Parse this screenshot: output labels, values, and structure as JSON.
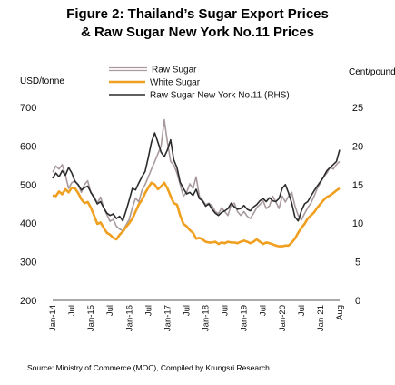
{
  "title": {
    "line1": "Figure 2: Thailand’s Sugar Export Prices",
    "line2": "& Raw Sugar New York No.11 Prices"
  },
  "source": "Source: Ministry of Commerce (MOC), Compiled by Krungsri Research",
  "chart_data": {
    "type": "line",
    "title": "Figure 2: Thailand’s Sugar Export Prices & Raw Sugar New York No.11 Prices",
    "ylabel_left": "USD/tonne",
    "ylabel_right": "Cent/pound",
    "ylim_left": [
      200,
      700
    ],
    "ylim_right": [
      0,
      25
    ],
    "yticks_left": [
      "700",
      "600",
      "500",
      "400",
      "300",
      "200"
    ],
    "yticks_right": [
      "25",
      "20",
      "15",
      "10",
      "5",
      "0"
    ],
    "x_tick_labels": [
      "Jan-14",
      "Jul",
      "Jan-15",
      "Jul",
      "Jan-16",
      "Jul",
      "Jan-17",
      "Jul",
      "Jan-18",
      "Jul",
      "Jan-19",
      "Jul",
      "Jan-20",
      "Jul",
      "Jan-21",
      "Aug"
    ],
    "x_start": "Jan-2014",
    "grid": false,
    "legend_position": "top-center",
    "series": [
      {
        "name": "Raw Sugar",
        "axis": "left",
        "color": "#a89a9c",
        "values": [
          532,
          548,
          540,
          552,
          525,
          490,
          505,
          510,
          498,
          480,
          500,
          510,
          478,
          470,
          452,
          468,
          440,
          422,
          405,
          410,
          392,
          385,
          380,
          395,
          410,
          440,
          465,
          455,
          485,
          500,
          520,
          540,
          560,
          580,
          600,
          668,
          610,
          560,
          550,
          530,
          500,
          470,
          480,
          502,
          490,
          520,
          470,
          460,
          448,
          452,
          445,
          430,
          425,
          440,
          430,
          420,
          448,
          452,
          430,
          420,
          430,
          418,
          412,
          425,
          440,
          448,
          458,
          438,
          445,
          470,
          455,
          438,
          470,
          455,
          470,
          480,
          445,
          420,
          408,
          425,
          440,
          452,
          470,
          490,
          505,
          520,
          530,
          545,
          540,
          552,
          560
        ]
      },
      {
        "name": "White Sugar",
        "axis": "left",
        "color": "#f0a020",
        "values": [
          472,
          470,
          482,
          475,
          488,
          480,
          492,
          490,
          478,
          462,
          452,
          455,
          440,
          420,
          398,
          402,
          388,
          375,
          370,
          362,
          358,
          370,
          378,
          390,
          400,
          412,
          430,
          448,
          460,
          478,
          492,
          505,
          500,
          488,
          495,
          505,
          490,
          470,
          452,
          448,
          420,
          398,
          392,
          382,
          375,
          360,
          362,
          358,
          352,
          350,
          350,
          352,
          346,
          350,
          348,
          352,
          350,
          350,
          348,
          352,
          355,
          352,
          348,
          352,
          358,
          352,
          346,
          350,
          348,
          345,
          342,
          340,
          340,
          342,
          342,
          350,
          360,
          375,
          388,
          398,
          412,
          420,
          428,
          440,
          450,
          460,
          468,
          472,
          478,
          485,
          490
        ]
      },
      {
        "name": "Raw Sugar New York No.11 (RHS)",
        "axis": "right",
        "color": "#2b2b2b",
        "values": [
          15.8,
          16.5,
          16.0,
          16.8,
          16.2,
          17.2,
          16.5,
          15.4,
          15.0,
          14.3,
          14.6,
          14.8,
          14.0,
          13.3,
          12.5,
          12.8,
          12.0,
          11.3,
          11.0,
          11.2,
          10.6,
          10.9,
          10.3,
          11.6,
          13.0,
          14.5,
          14.3,
          15.2,
          16.0,
          16.7,
          18.5,
          20.5,
          21.7,
          20.5,
          19.2,
          18.6,
          19.5,
          20.8,
          18.2,
          17.2,
          15.3,
          14.5,
          13.8,
          14.0,
          13.6,
          14.4,
          13.2,
          12.9,
          12.2,
          12.5,
          11.8,
          11.3,
          11.0,
          11.4,
          11.6,
          11.9,
          12.6,
          12.1,
          11.8,
          11.9,
          12.3,
          11.8,
          11.6,
          12.1,
          12.4,
          12.9,
          13.2,
          12.8,
          13.3,
          12.9,
          12.8,
          13.2,
          14.5,
          15.0,
          13.9,
          12.6,
          10.8,
          10.3,
          11.6,
          12.5,
          12.8,
          13.5,
          14.2,
          14.8,
          15.4,
          16.0,
          16.8,
          17.2,
          17.6,
          18.0,
          19.5
        ]
      }
    ]
  }
}
